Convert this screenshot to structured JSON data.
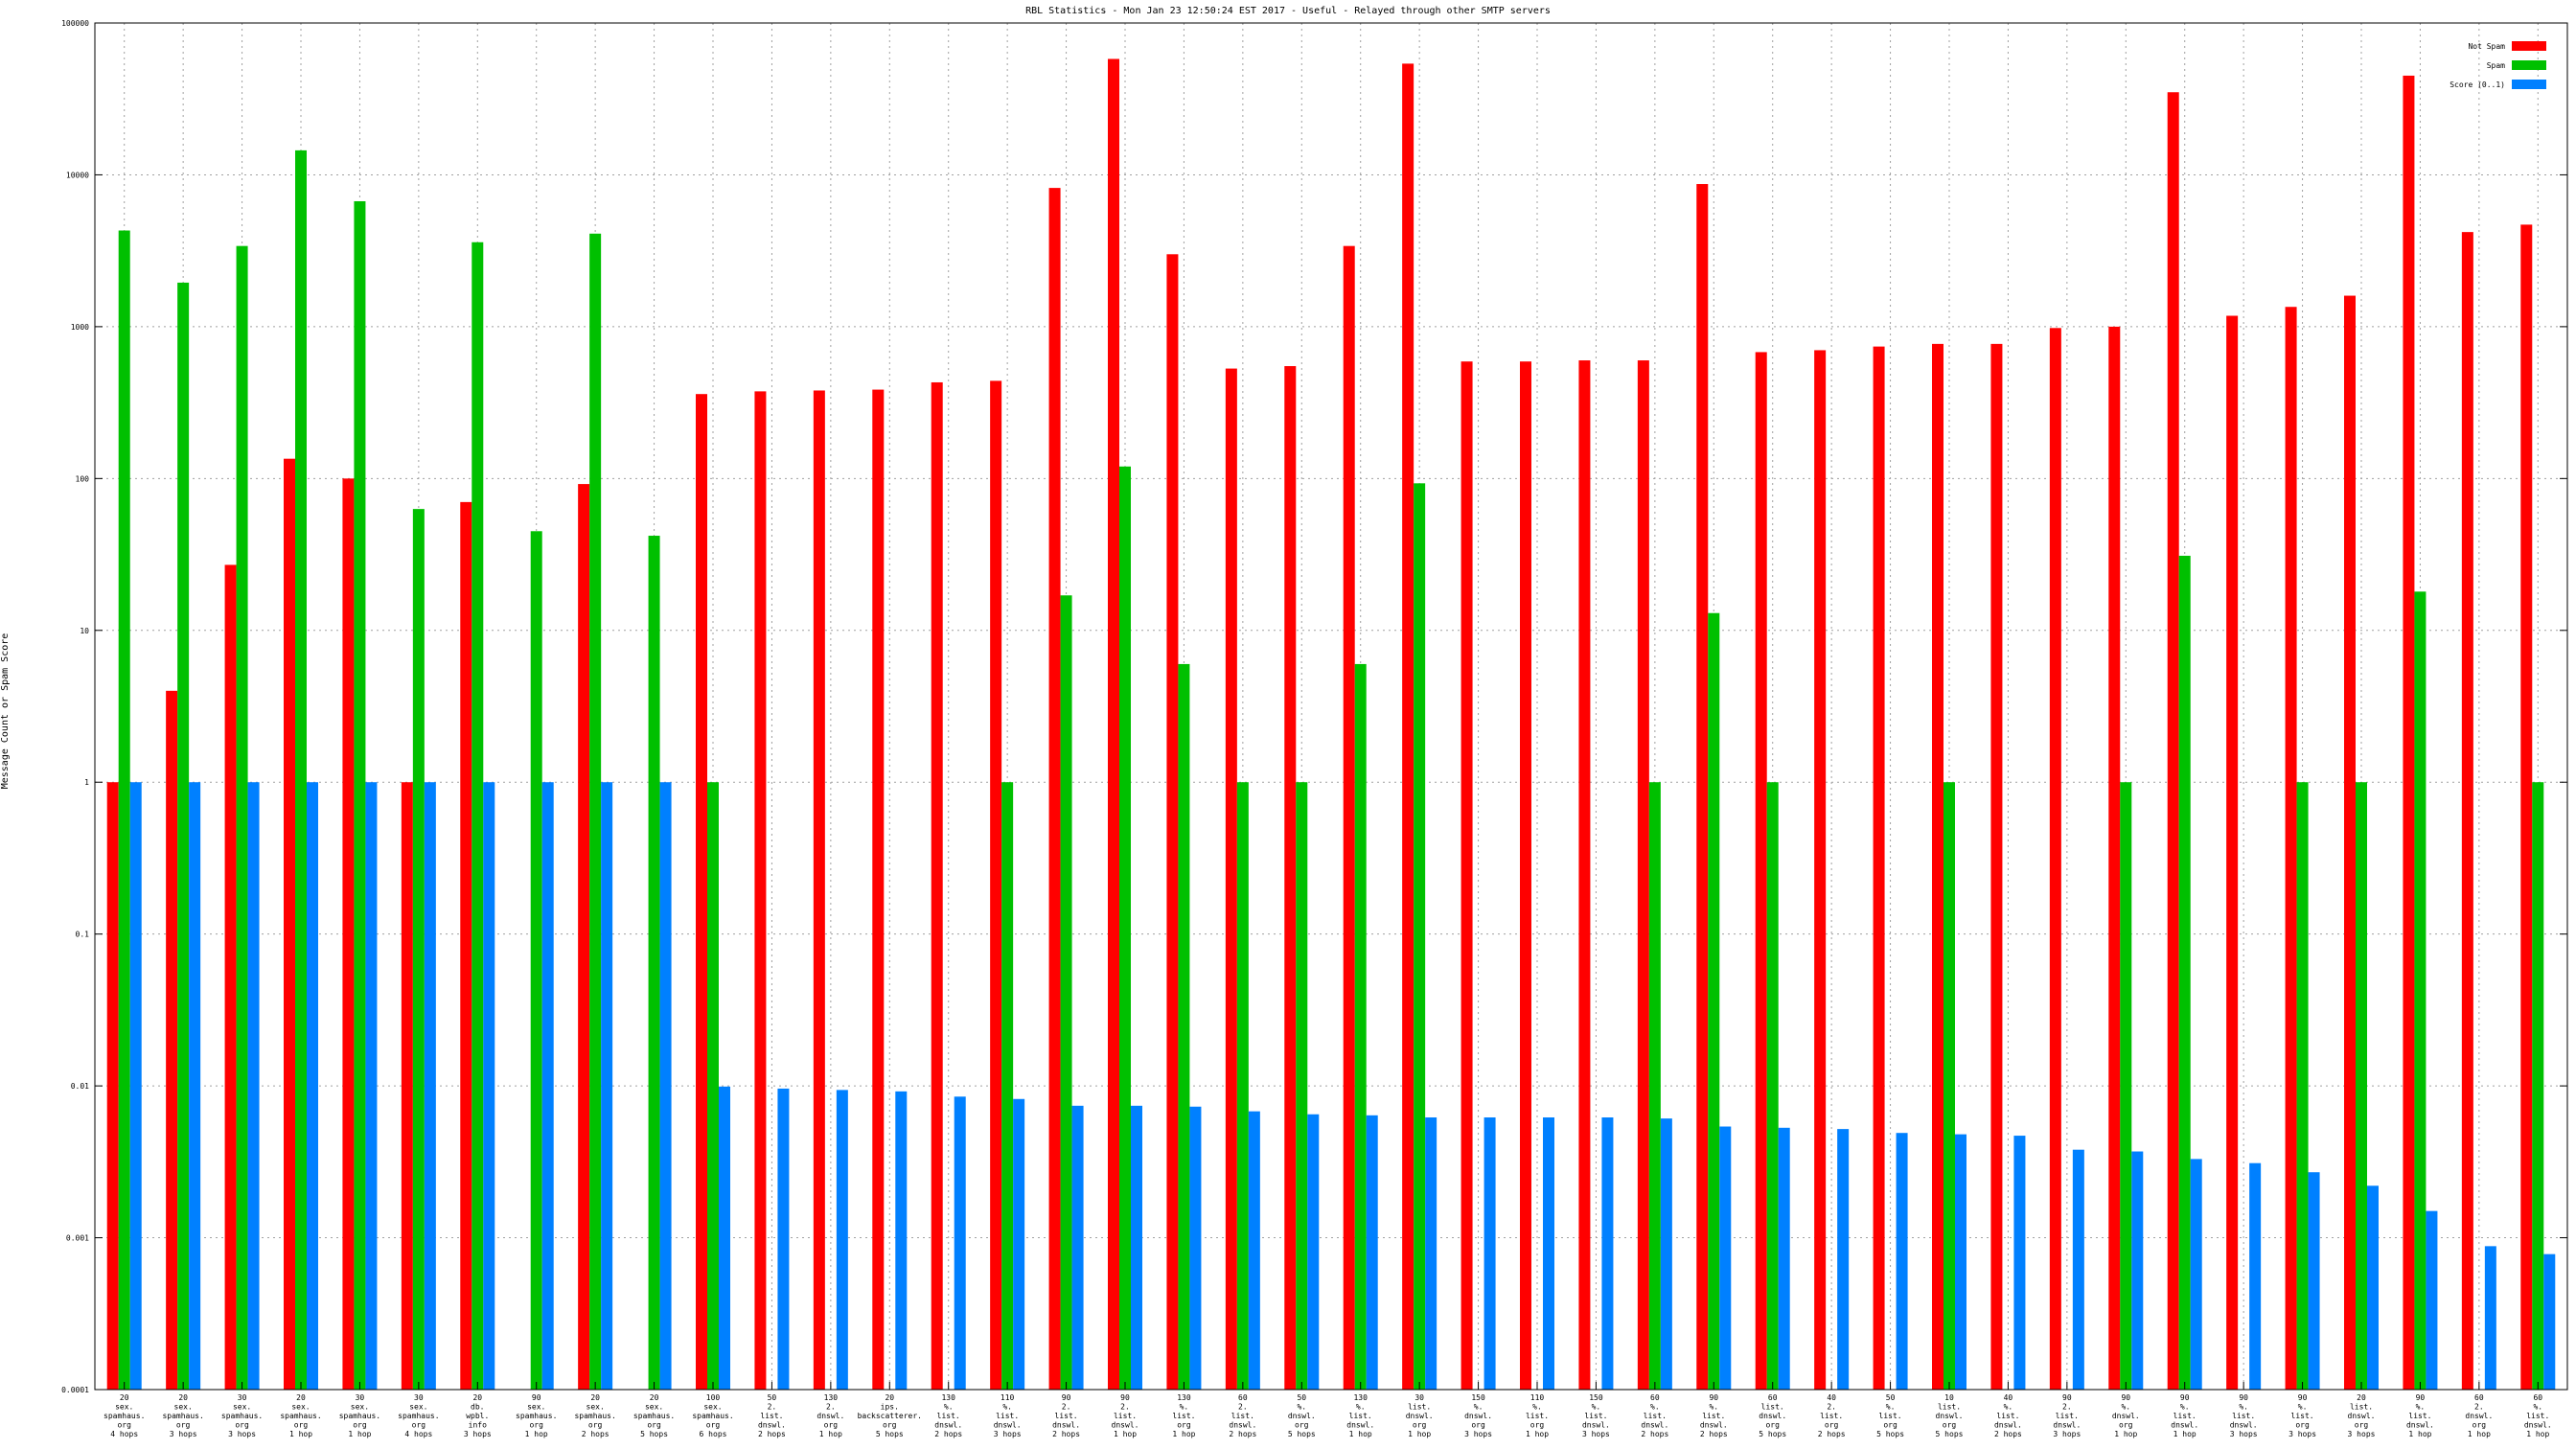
{
  "chart_data": {
    "type": "bar",
    "title": "RBL Statistics - Mon Jan 23 12:50:24 EST 2017 - Useful - Relayed through other SMTP servers",
    "xlabel": "",
    "ylabel": "Message Count or Spam Score",
    "yscale": "log",
    "ylim": [
      0.0001,
      100000
    ],
    "ytick_labels": [
      "0.0001",
      "0.001",
      "0.01",
      "0.1",
      "1",
      "10",
      "100",
      "1000",
      "10000",
      "100000"
    ],
    "grid": true,
    "legend_position": "top-right",
    "categories": [
      [
        "20",
        "sex.",
        "spamhaus.",
        "org",
        "4 hops"
      ],
      [
        "20",
        "sex.",
        "spamhaus.",
        "org",
        "3 hops"
      ],
      [
        "30",
        "sex.",
        "spamhaus.",
        "org",
        "3 hops"
      ],
      [
        "20",
        "sex.",
        "spamhaus.",
        "org",
        "1 hop"
      ],
      [
        "30",
        "sex.",
        "spamhaus.",
        "org",
        "1 hop"
      ],
      [
        "30",
        "sex.",
        "spamhaus.",
        "org",
        "4 hops"
      ],
      [
        "20",
        "db.",
        "wpbl.",
        "info",
        "3 hops"
      ],
      [
        "90",
        "sex.",
        "spamhaus.",
        "org",
        "1 hop"
      ],
      [
        "20",
        "sex.",
        "spamhaus.",
        "org",
        "2 hops"
      ],
      [
        "20",
        "sex.",
        "spamhaus.",
        "org",
        "5 hops"
      ],
      [
        "100",
        "sex.",
        "spamhaus.",
        "org",
        "6 hops"
      ],
      [
        "50",
        "2.",
        "list.",
        "dnswl.",
        "2 hops"
      ],
      [
        "130",
        "2.",
        "dnswl.",
        "org",
        "1 hop"
      ],
      [
        "20",
        "ips.",
        "backscatterer.",
        "org",
        "5 hops"
      ],
      [
        "130",
        "%.",
        "list.",
        "dnswl.",
        "2 hops"
      ],
      [
        "110",
        "%.",
        "list.",
        "dnswl.",
        "3 hops"
      ],
      [
        "90",
        "2.",
        "list.",
        "dnswl.",
        "2 hops"
      ],
      [
        "90",
        "2.",
        "list.",
        "dnswl.",
        "1 hop"
      ],
      [
        "130",
        "%.",
        "list.",
        "org",
        "1 hop"
      ],
      [
        "60",
        "2.",
        "list.",
        "dnswl.",
        "2 hops"
      ],
      [
        "50",
        "%.",
        "dnswl.",
        "org",
        "5 hops"
      ],
      [
        "130",
        "%.",
        "list.",
        "dnswl.",
        "1 hop"
      ],
      [
        "30",
        "list.",
        "dnswl.",
        "org",
        "1 hop"
      ],
      [
        "150",
        "%.",
        "dnswl.",
        "org",
        "3 hops"
      ],
      [
        "110",
        "%.",
        "list.",
        "org",
        "1 hop"
      ],
      [
        "150",
        "%.",
        "list.",
        "dnswl.",
        "3 hops"
      ],
      [
        "60",
        "%.",
        "list.",
        "dnswl.",
        "2 hops"
      ],
      [
        "90",
        "%.",
        "list.",
        "dnswl.",
        "2 hops"
      ],
      [
        "60",
        "list.",
        "dnswl.",
        "org",
        "5 hops"
      ],
      [
        "40",
        "2.",
        "list.",
        "org",
        "2 hops"
      ],
      [
        "50",
        "%.",
        "list.",
        "org",
        "5 hops"
      ],
      [
        "10",
        "list.",
        "dnswl.",
        "org",
        "5 hops"
      ],
      [
        "40",
        "%.",
        "list.",
        "dnswl.",
        "2 hops"
      ],
      [
        "90",
        "2.",
        "list.",
        "dnswl.",
        "3 hops"
      ],
      [
        "90",
        "%.",
        "dnswl.",
        "org",
        "1 hop"
      ],
      [
        "90",
        "%.",
        "list.",
        "dnswl.",
        "1 hop"
      ],
      [
        "90",
        "%.",
        "list.",
        "dnswl.",
        "3 hops"
      ],
      [
        "90",
        "%.",
        "list.",
        "org",
        "3 hops"
      ],
      [
        "20",
        "list.",
        "dnswl.",
        "org",
        "3 hops"
      ],
      [
        "90",
        "%.",
        "list.",
        "dnswl.",
        "1 hop"
      ],
      [
        "60",
        "2.",
        "dnswl.",
        "org",
        "1 hop"
      ],
      [
        "60",
        "%.",
        "list.",
        "dnswl.",
        "1 hop"
      ]
    ],
    "series": [
      {
        "name": "Not Spam",
        "color": "#ff0000",
        "values": [
          1,
          4,
          27,
          135,
          100,
          1,
          70,
          null,
          92,
          null,
          360,
          375,
          380,
          385,
          430,
          440,
          8200,
          58000,
          3000,
          530,
          550,
          3400,
          54000,
          590,
          590,
          600,
          600,
          8700,
          680,
          700,
          740,
          770,
          770,
          980,
          1000,
          35000,
          1180,
          1350,
          1600,
          45000,
          4200,
          4700
        ]
      },
      {
        "name": "Spam",
        "color": "#00c000",
        "values": [
          4300,
          1950,
          3400,
          14500,
          6700,
          63,
          3600,
          45,
          4100,
          42,
          1,
          null,
          null,
          null,
          null,
          1,
          17,
          120,
          6,
          1,
          1,
          6,
          93,
          null,
          null,
          null,
          1,
          13,
          1,
          null,
          null,
          1,
          null,
          null,
          1,
          31,
          null,
          1,
          1,
          18,
          null,
          1
        ]
      },
      {
        "name": "Score (0..1)",
        "color": "#0080ff",
        "values": [
          1,
          1,
          1,
          1,
          1,
          1,
          1,
          1,
          1,
          1,
          0.0099,
          0.0096,
          0.0094,
          0.0092,
          0.0085,
          0.0082,
          0.0074,
          0.0074,
          0.0073,
          0.0068,
          0.0065,
          0.0064,
          0.0062,
          0.0062,
          0.0062,
          0.0062,
          0.0061,
          0.0054,
          0.0053,
          0.0052,
          0.0049,
          0.0048,
          0.0047,
          0.0038,
          0.0037,
          0.0033,
          0.0031,
          0.0027,
          0.0022,
          0.0015,
          0.00088,
          0.00078
        ]
      }
    ]
  }
}
